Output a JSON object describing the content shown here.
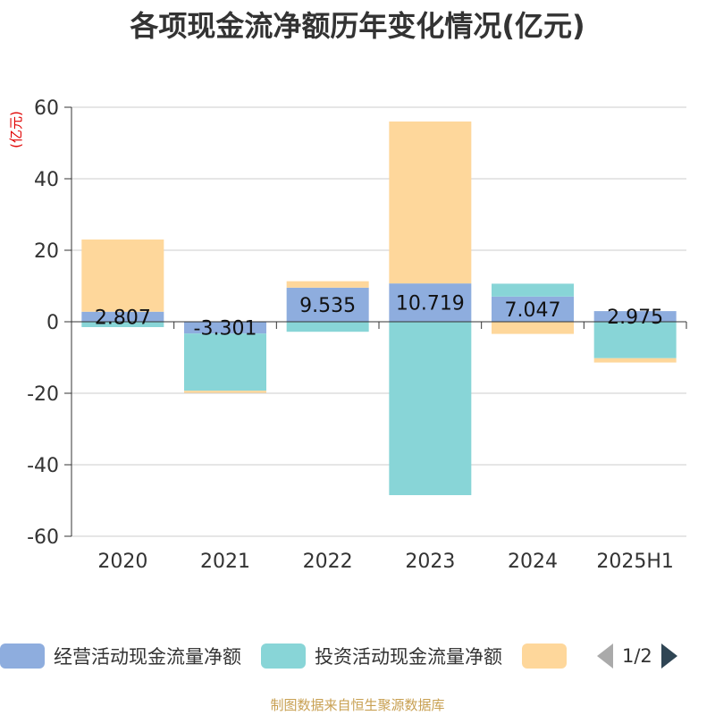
{
  "chart_data": {
    "type": "bar",
    "stacked": true,
    "title": "各项现金流净额历年变化情况(亿元)",
    "ylabel": "(亿元)",
    "ylim": [
      -60,
      60
    ],
    "yticks": [
      60,
      40,
      20,
      0,
      -20,
      -40,
      -60
    ],
    "categories": [
      "2020",
      "2021",
      "2022",
      "2023",
      "2024",
      "2025H1"
    ],
    "series": [
      {
        "name": "经营活动现金流量净额",
        "color": "#8eadde",
        "values": [
          2.807,
          -3.301,
          9.535,
          10.719,
          7.047,
          2.975
        ]
      },
      {
        "name": "投资活动现金流量净额",
        "color": "#88d5d7",
        "values": [
          -1.5,
          -16.0,
          -2.8,
          -48.5,
          3.6,
          -10.2
        ]
      },
      {
        "name": "",
        "color": "#fed79b",
        "values": [
          20.2,
          -0.6,
          1.8,
          45.3,
          -3.4,
          -1.2
        ]
      }
    ],
    "data_labels": [
      "2.807",
      "-3.301",
      "9.535",
      "10.719",
      "7.047",
      "2.975"
    ],
    "grid": true,
    "legend_position": "bottom"
  },
  "legend": {
    "page_indicator": "1/2"
  },
  "source": "制图数据来自恒生聚源数据库"
}
